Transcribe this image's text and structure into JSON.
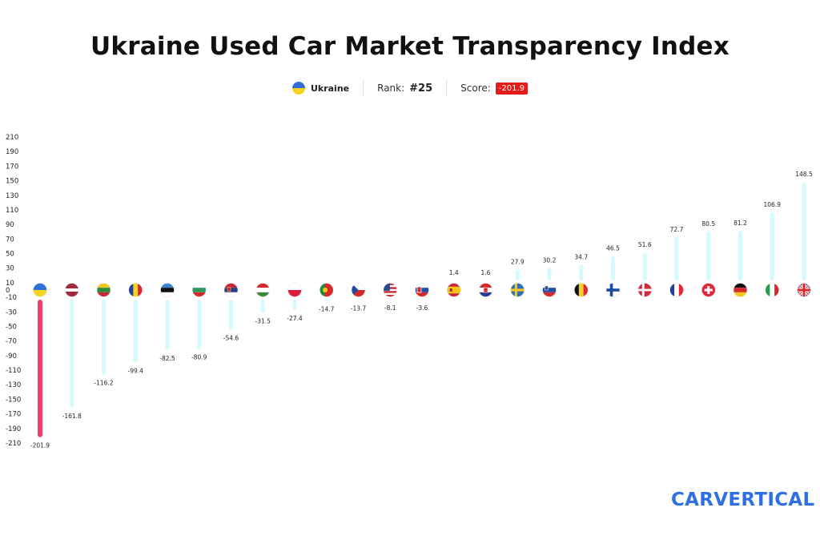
{
  "header": {
    "title": "Ukraine Used Car Market Transparency Index",
    "country": "Ukraine",
    "rank_label": "Rank:",
    "rank_value": "#25",
    "score_label": "Score:",
    "score_value": "-201.9"
  },
  "logo": {
    "text": "carVertical"
  },
  "colors": {
    "highlight_bar": "#f13f6a",
    "bar": "#d6fbfd",
    "score_badge": "#e51a1a",
    "logo": "#2f6fe4"
  },
  "chart_data": {
    "type": "bar",
    "title": "Ukraine Used Car Market Transparency Index",
    "xlabel": "",
    "ylabel": "",
    "ylim": [
      -210,
      210
    ],
    "yticks": [
      210,
      190,
      170,
      150,
      130,
      110,
      90,
      70,
      50,
      30,
      10,
      0,
      -10,
      -30,
      -50,
      -70,
      -90,
      -110,
      -130,
      -150,
      -170,
      -190,
      -210
    ],
    "highlight": "Ukraine",
    "categories": [
      "Ukraine",
      "Latvia",
      "Lithuania",
      "Romania",
      "Estonia",
      "Bulgaria",
      "Serbia",
      "Hungary",
      "Poland",
      "Portugal",
      "Czech Republic",
      "United States",
      "Slovakia",
      "Spain",
      "Croatia",
      "Sweden",
      "Slovenia",
      "Belgium",
      "Finland",
      "Denmark",
      "France",
      "Switzerland",
      "Germany",
      "Italy",
      "United Kingdom"
    ],
    "values": [
      -201.9,
      -161.8,
      -116.2,
      -99.4,
      -82.5,
      -80.9,
      -54.6,
      -31.5,
      -27.4,
      -14.7,
      -13.7,
      -8.1,
      -3.6,
      1.4,
      1.6,
      27.9,
      30.2,
      34.7,
      46.5,
      51.6,
      72.7,
      80.5,
      81.2,
      106.9,
      148.5
    ],
    "value_labels": [
      "-201.9",
      "-161.8",
      "-116.2",
      "-99.4",
      "-82.5",
      "-80.9",
      "-54.6",
      "-31.5",
      "-27.4",
      "-14.7",
      "-13.7",
      "-8.1",
      "-3.6",
      "1.4",
      "1.6",
      "27.9",
      "30.2",
      "34.7",
      "46.5",
      "51.6",
      "72.7",
      "80.5",
      "81.2",
      "106.9",
      "148.5"
    ],
    "flags": [
      "ukraine-flag-icon",
      "latvia-flag-icon",
      "lithuania-flag-icon",
      "romania-flag-icon",
      "estonia-flag-icon",
      "bulgaria-flag-icon",
      "serbia-flag-icon",
      "hungary-flag-icon",
      "poland-flag-icon",
      "portugal-flag-icon",
      "czech-flag-icon",
      "usa-flag-icon",
      "slovakia-flag-icon",
      "spain-flag-icon",
      "croatia-flag-icon",
      "sweden-flag-icon",
      "slovenia-flag-icon",
      "belgium-flag-icon",
      "finland-flag-icon",
      "denmark-flag-icon",
      "france-flag-icon",
      "switzerland-flag-icon",
      "germany-flag-icon",
      "italy-flag-icon",
      "uk-flag-icon"
    ]
  }
}
